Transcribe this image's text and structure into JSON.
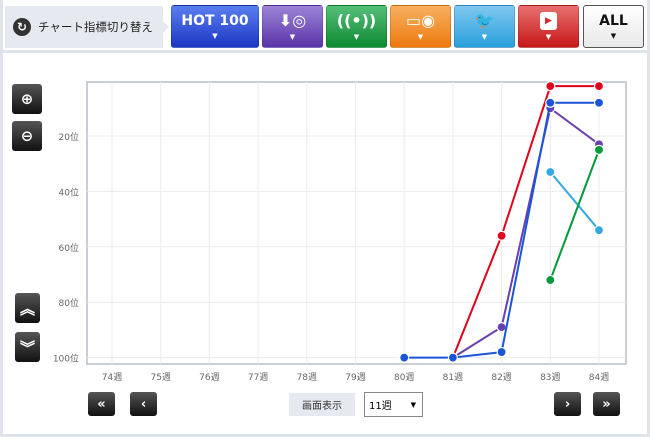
{
  "toolbar": {
    "switch_label": "チャート指標切り替え",
    "buttons": [
      {
        "label": "HOT 100",
        "icon": "hot100",
        "color": "#2443d0"
      },
      {
        "label": "",
        "icon": "download-cd-icon",
        "color": "#6b45b5"
      },
      {
        "label": "",
        "icon": "radio-antenna-icon",
        "color": "#119a3a"
      },
      {
        "label": "",
        "icon": "pc-cd-icon",
        "color": "#f08a20"
      },
      {
        "label": "",
        "icon": "twitter-icon",
        "color": "#35a8e0"
      },
      {
        "label": "",
        "icon": "youtube-icon",
        "color": "#d42a2a"
      },
      {
        "label": "ALL",
        "icon": "all",
        "color": "#ffffff"
      }
    ]
  },
  "controls": {
    "display_label": "画面表示",
    "weeks_selected": "11週",
    "zoom_in": "zoom-in-icon",
    "zoom_out": "zoom-out-icon"
  },
  "chart_data": {
    "type": "line",
    "categories": [
      "74週",
      "75週",
      "76週",
      "77週",
      "78週",
      "79週",
      "80週",
      "81週",
      "82週",
      "83週",
      "84週"
    ],
    "ytick_labels": [
      "20位",
      "40位",
      "60位",
      "80位",
      "100位"
    ],
    "yticks": [
      20,
      40,
      60,
      80,
      100
    ],
    "ylim": [
      0,
      100
    ],
    "y_reversed": true,
    "grid": true,
    "series": [
      {
        "color": "#e0001b",
        "values": [
          null,
          null,
          null,
          null,
          null,
          null,
          null,
          100,
          56,
          2,
          2
        ]
      },
      {
        "color": "#6a3fb0",
        "values": [
          null,
          null,
          null,
          null,
          null,
          null,
          null,
          100,
          89,
          10,
          23
        ]
      },
      {
        "color": "#1a55d8",
        "values": [
          null,
          null,
          null,
          null,
          null,
          null,
          100,
          100,
          98,
          8,
          8
        ]
      },
      {
        "color": "#35a8e0",
        "values": [
          null,
          null,
          null,
          null,
          null,
          null,
          null,
          null,
          null,
          33,
          54
        ]
      },
      {
        "color": "#009a3a",
        "values": [
          null,
          null,
          null,
          null,
          null,
          null,
          null,
          null,
          null,
          72,
          25
        ]
      }
    ]
  }
}
